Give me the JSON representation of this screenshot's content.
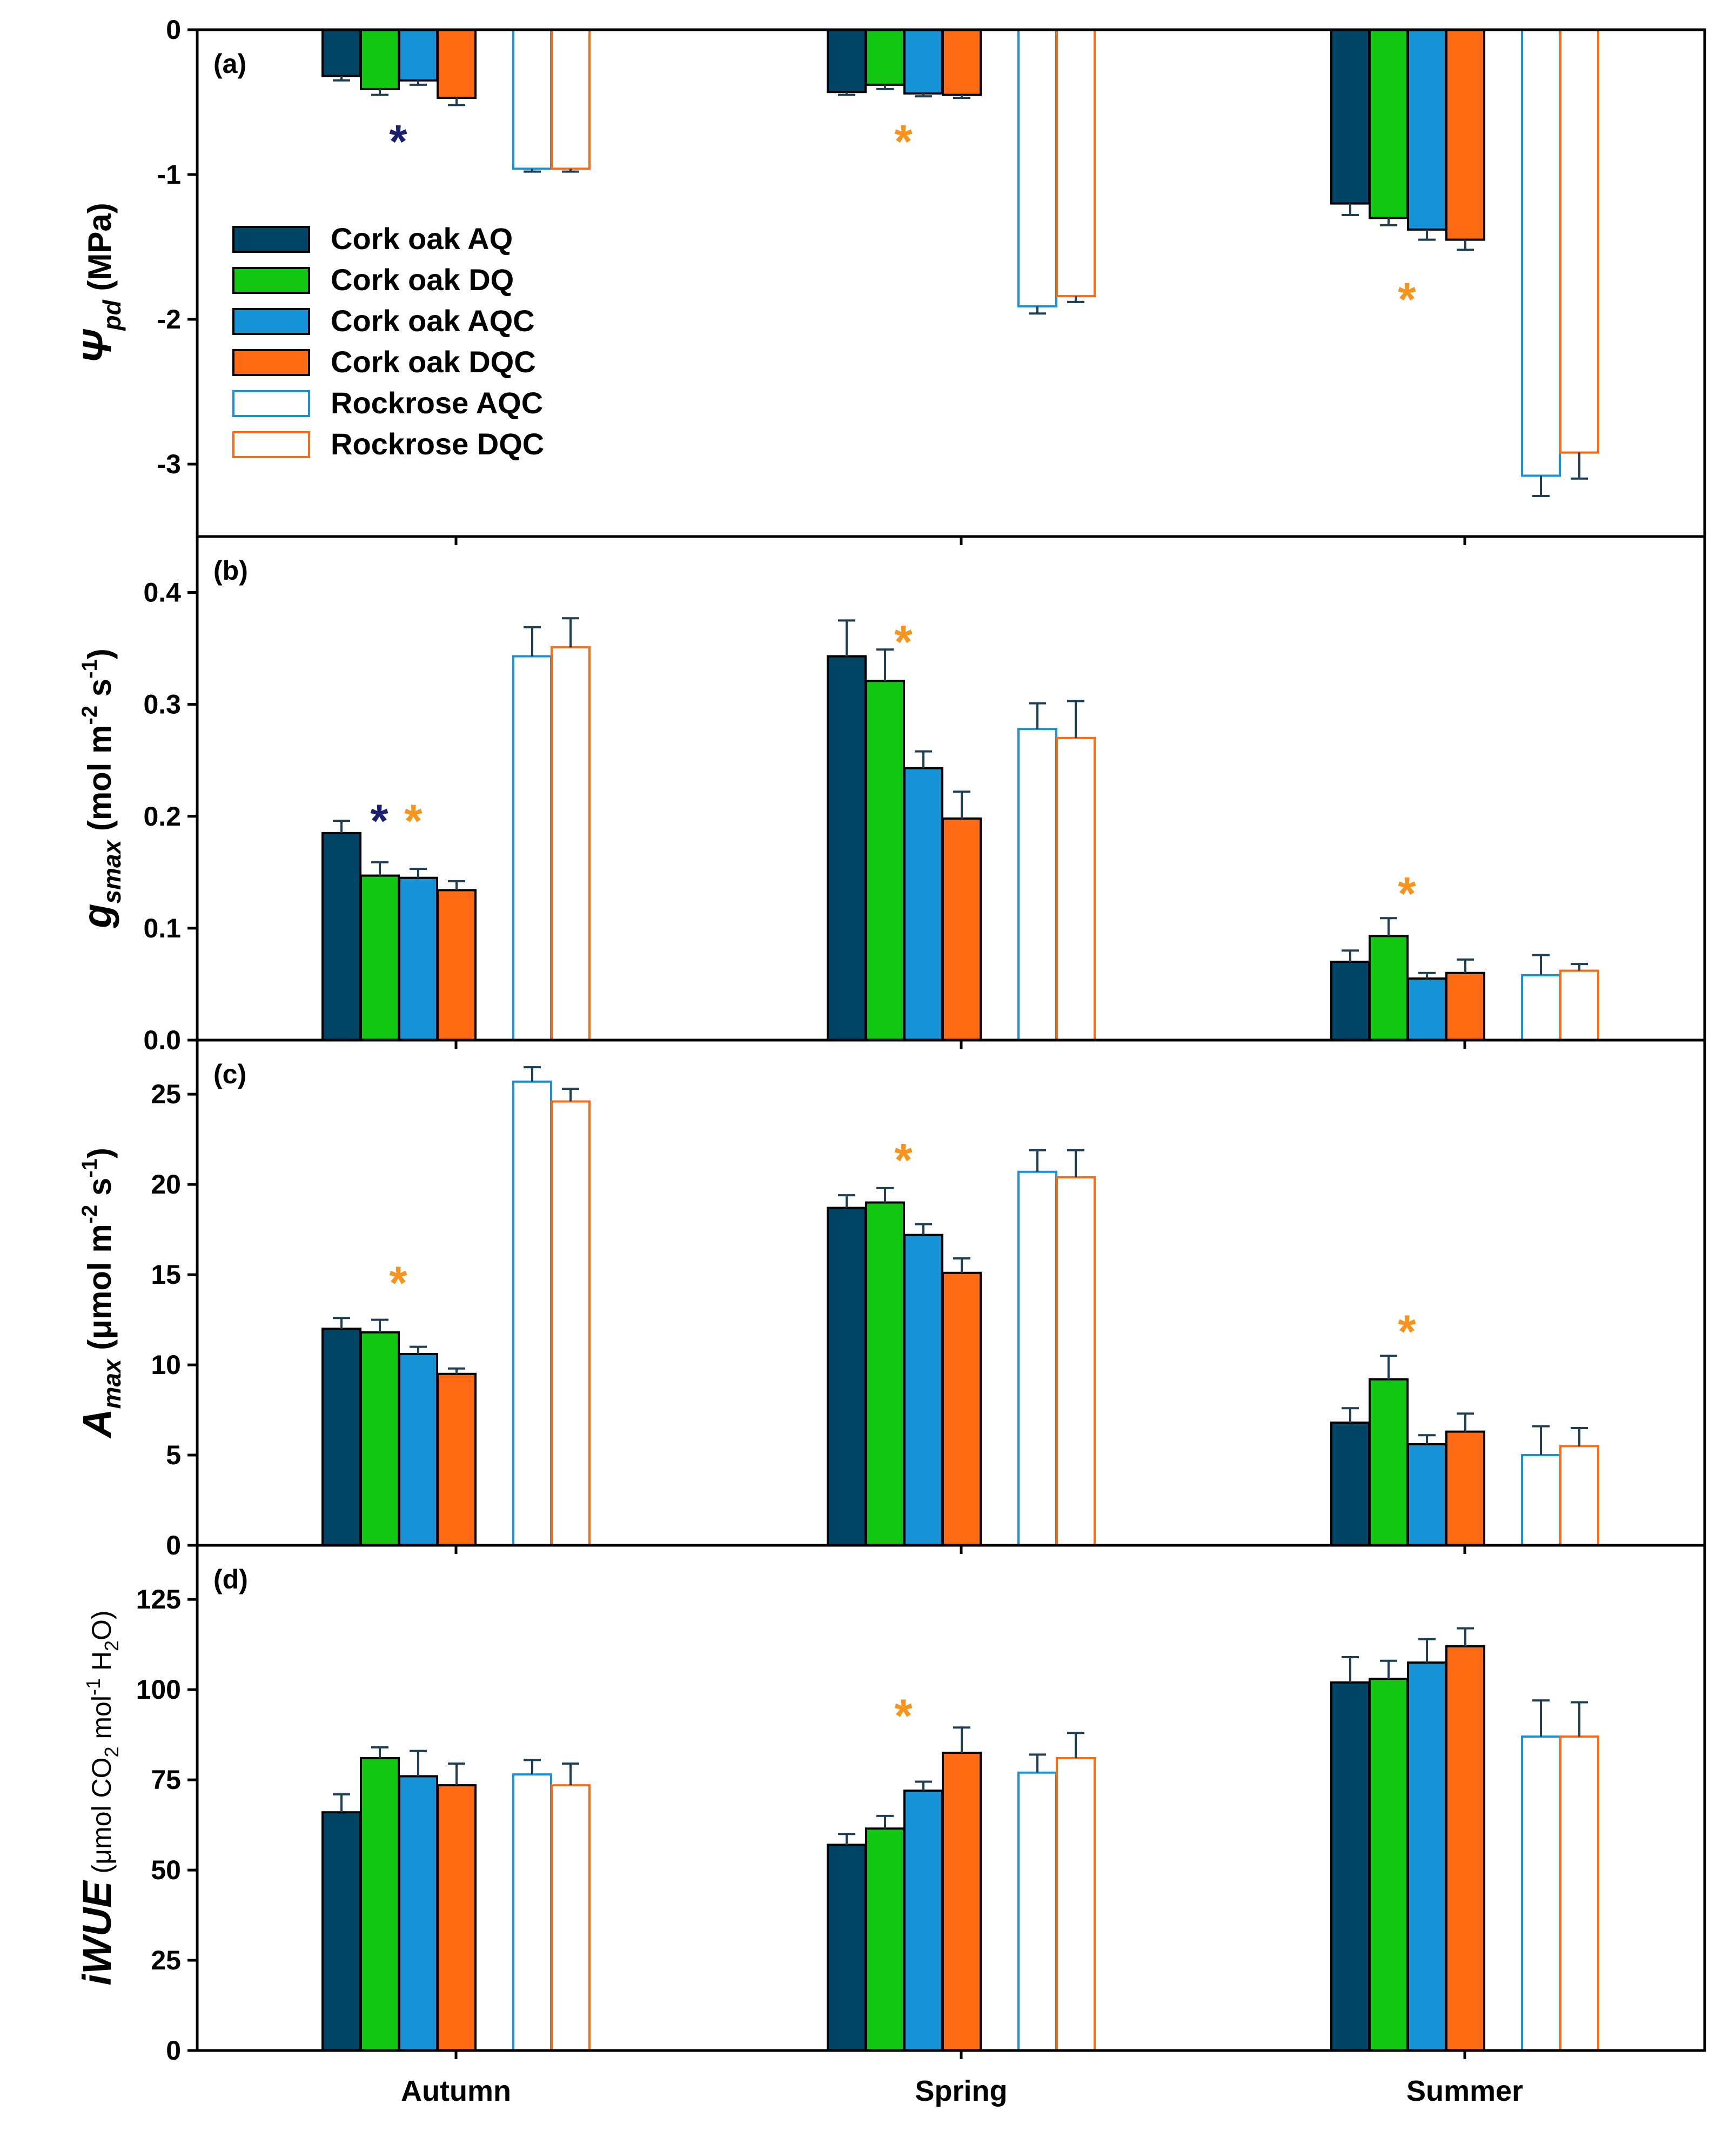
{
  "figure": {
    "categories": [
      "Autumn",
      "Spring",
      "Summer"
    ],
    "legend": [
      {
        "label": "Cork oak AQ",
        "color": "#004466",
        "filled": true
      },
      {
        "label": "Cork oak DQ",
        "color": "#11C711",
        "filled": true
      },
      {
        "label": "Cork oak AQC",
        "color": "#1593D6",
        "filled": true
      },
      {
        "label": "Cork oak DQC",
        "color": "#FF6A13",
        "filled": true
      },
      {
        "label": "Rockrose AQC",
        "color": "#1593D6",
        "filled": false
      },
      {
        "label": "Rockrose DQC",
        "color": "#FF6A13",
        "filled": false
      }
    ],
    "star_colors": {
      "navy": "#1B1F6E",
      "orange": "#F7941D"
    }
  },
  "chart_data": [
    {
      "type": "bar",
      "panel": "(a)",
      "ylabel": {
        "symbol": "Ψ",
        "subscript": "pd",
        "unit": " (MPa)"
      },
      "ylim": [
        -3.5,
        0
      ],
      "yticks": [
        0,
        -1,
        -2,
        -3
      ],
      "ytick_labels": [
        "0",
        "-1",
        "-2",
        "-3"
      ],
      "categories": [
        "Autumn",
        "Spring",
        "Summer"
      ],
      "series": [
        {
          "name": "Cork oak AQ",
          "values": [
            -0.32,
            -0.43,
            -1.2
          ],
          "errors": [
            0.03,
            0.02,
            0.08
          ]
        },
        {
          "name": "Cork oak DQ",
          "values": [
            -0.41,
            -0.38,
            -1.3
          ],
          "errors": [
            0.04,
            0.03,
            0.05
          ]
        },
        {
          "name": "Cork oak AQC",
          "values": [
            -0.35,
            -0.44,
            -1.38
          ],
          "errors": [
            0.03,
            0.02,
            0.07
          ]
        },
        {
          "name": "Cork oak DQC",
          "values": [
            -0.47,
            -0.45,
            -1.45
          ],
          "errors": [
            0.05,
            0.02,
            0.07
          ]
        },
        {
          "name": "Rockrose AQC",
          "values": [
            -0.96,
            -1.91,
            -3.08
          ],
          "errors": [
            0.02,
            0.05,
            0.14
          ]
        },
        {
          "name": "Rockrose DQC",
          "values": [
            -0.96,
            -1.84,
            -2.92
          ],
          "errors": [
            0.02,
            0.04,
            0.18
          ]
        }
      ],
      "annotations": [
        {
          "text": "*",
          "category": "Autumn",
          "value": -0.74,
          "color": "navy"
        },
        {
          "text": "*",
          "category": "Spring",
          "value": -0.74,
          "color": "orange"
        },
        {
          "text": "*",
          "category": "Summer",
          "value": -1.83,
          "color": "orange"
        }
      ]
    },
    {
      "type": "bar",
      "panel": "(b)",
      "ylabel": {
        "symbol": "g",
        "subscript": "smax",
        "unit": " (mol m",
        "sup1": "-2",
        "mid": " s",
        "sup2": "-1",
        "end": ")"
      },
      "ylim": [
        0,
        0.45
      ],
      "yticks": [
        0,
        0.1,
        0.2,
        0.3,
        0.4
      ],
      "ytick_labels": [
        "0.0",
        "0.1",
        "0.2",
        "0.3",
        "0.4"
      ],
      "categories": [
        "Autumn",
        "Spring",
        "Summer"
      ],
      "series": [
        {
          "name": "Cork oak AQ",
          "values": [
            0.185,
            0.343,
            0.07
          ],
          "errors": [
            0.011,
            0.032,
            0.01
          ]
        },
        {
          "name": "Cork oak DQ",
          "values": [
            0.147,
            0.321,
            0.093
          ],
          "errors": [
            0.012,
            0.028,
            0.016
          ]
        },
        {
          "name": "Cork oak AQC",
          "values": [
            0.145,
            0.243,
            0.055
          ],
          "errors": [
            0.008,
            0.015,
            0.005
          ]
        },
        {
          "name": "Cork oak DQC",
          "values": [
            0.134,
            0.198,
            0.06
          ],
          "errors": [
            0.008,
            0.024,
            0.012
          ]
        },
        {
          "name": "Rockrose AQC",
          "values": [
            0.343,
            0.278,
            0.058
          ],
          "errors": [
            0.026,
            0.023,
            0.018
          ]
        },
        {
          "name": "Rockrose DQC",
          "values": [
            0.351,
            0.27,
            0.062
          ],
          "errors": [
            0.026,
            0.033,
            0.006
          ]
        }
      ],
      "annotations": [
        {
          "text": "*",
          "category": "Autumn",
          "value": 0.2,
          "color": "navy",
          "offset": 1.5
        },
        {
          "text": "*",
          "category": "Autumn",
          "value": 0.2,
          "color": "orange",
          "offset": 2.4
        },
        {
          "text": "*",
          "category": "Spring",
          "value": 0.36,
          "color": "orange"
        },
        {
          "text": "*",
          "category": "Summer",
          "value": 0.135,
          "color": "orange"
        }
      ]
    },
    {
      "type": "bar",
      "panel": "(c)",
      "ylabel": {
        "symbol": "A",
        "subscript": "max",
        "unit": " (μmol m",
        "sup1": "-2",
        "mid": " s",
        "sup2": "-1",
        "end": ")"
      },
      "ylim": [
        0,
        28
      ],
      "yticks": [
        0,
        5,
        10,
        15,
        20,
        25
      ],
      "ytick_labels": [
        "0",
        "5",
        "10",
        "15",
        "20",
        "25"
      ],
      "categories": [
        "Autumn",
        "Spring",
        "Summer"
      ],
      "series": [
        {
          "name": "Cork oak AQ",
          "values": [
            12.0,
            18.7,
            6.8
          ],
          "errors": [
            0.6,
            0.7,
            0.8
          ]
        },
        {
          "name": "Cork oak DQ",
          "values": [
            11.8,
            19.0,
            9.2
          ],
          "errors": [
            0.7,
            0.8,
            1.3
          ]
        },
        {
          "name": "Cork oak AQC",
          "values": [
            10.6,
            17.2,
            5.6
          ],
          "errors": [
            0.4,
            0.6,
            0.5
          ]
        },
        {
          "name": "Cork oak DQC",
          "values": [
            9.5,
            15.1,
            6.3
          ],
          "errors": [
            0.3,
            0.8,
            1.0
          ]
        },
        {
          "name": "Rockrose AQC",
          "values": [
            25.7,
            20.7,
            5.0
          ],
          "errors": [
            0.8,
            1.2,
            1.6
          ]
        },
        {
          "name": "Rockrose DQC",
          "values": [
            24.6,
            20.4,
            5.5
          ],
          "errors": [
            0.7,
            1.5,
            1.0
          ]
        }
      ],
      "annotations": [
        {
          "text": "*",
          "category": "Autumn",
          "value": 14.8,
          "color": "orange"
        },
        {
          "text": "*",
          "category": "Spring",
          "value": 21.6,
          "color": "orange"
        },
        {
          "text": "*",
          "category": "Summer",
          "value": 12.1,
          "color": "orange"
        }
      ]
    },
    {
      "type": "bar",
      "panel": "(d)",
      "ylabel": {
        "symbol": "iWUE",
        "unit": " (μmol CO",
        "sub": "2",
        "mid": " mol",
        "sup": "-1",
        "mid2": " H",
        "sub2": "2",
        "end": "O)"
      },
      "ylim": [
        0,
        140
      ],
      "yticks": [
        0,
        25,
        50,
        75,
        100,
        125
      ],
      "ytick_labels": [
        "0",
        "25",
        "50",
        "75",
        "100",
        "125"
      ],
      "categories": [
        "Autumn",
        "Spring",
        "Summer"
      ],
      "series": [
        {
          "name": "Cork oak AQ",
          "values": [
            66,
            57,
            102
          ],
          "errors": [
            5,
            3,
            7
          ]
        },
        {
          "name": "Cork oak DQ",
          "values": [
            81,
            61.5,
            103
          ],
          "errors": [
            3,
            3.5,
            5
          ]
        },
        {
          "name": "Cork oak AQC",
          "values": [
            76,
            72,
            107.5
          ],
          "errors": [
            7,
            2.5,
            6.5
          ]
        },
        {
          "name": "Cork oak DQC",
          "values": [
            73.5,
            82.5,
            112
          ],
          "errors": [
            6,
            7,
            5
          ]
        },
        {
          "name": "Rockrose AQC",
          "values": [
            76.5,
            77,
            87
          ],
          "errors": [
            4,
            5,
            10
          ]
        },
        {
          "name": "Rockrose DQC",
          "values": [
            73.5,
            81,
            87
          ],
          "errors": [
            6,
            7,
            9.5
          ]
        }
      ],
      "annotations": [
        {
          "text": "*",
          "category": "Spring",
          "value": 94,
          "color": "orange"
        }
      ]
    }
  ]
}
